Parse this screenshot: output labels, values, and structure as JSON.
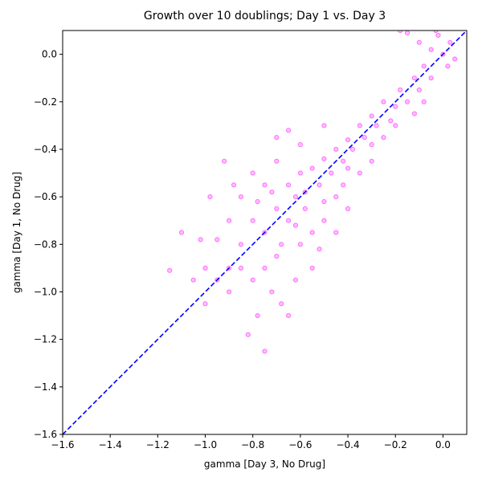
{
  "chart_data": {
    "type": "scatter",
    "title": "Growth over 10 doublings; Day 1 vs. Day 3",
    "x_label": "gamma [Day 3, No Drug]",
    "y_label": "gamma [Day 1, No Drug]",
    "xlim": [
      -1.6,
      0.1
    ],
    "ylim": [
      -1.6,
      0.1
    ],
    "xticks": [
      {
        "value": -1.6,
        "label": "−1.6"
      },
      {
        "value": -1.4,
        "label": "−1.4"
      },
      {
        "value": -1.2,
        "label": "−1.2"
      },
      {
        "value": -1.0,
        "label": "−1.0"
      },
      {
        "value": -0.8,
        "label": "−0.8"
      },
      {
        "value": -0.6,
        "label": "−0.6"
      },
      {
        "value": -0.4,
        "label": "−0.4"
      },
      {
        "value": -0.2,
        "label": "−0.2"
      },
      {
        "value": 0,
        "label": "0.0"
      }
    ],
    "yticks": [
      {
        "value": -1.6,
        "label": "−1.6"
      },
      {
        "value": -1.4,
        "label": "−1.4"
      },
      {
        "value": -1.2,
        "label": "−1.2"
      },
      {
        "value": -1.0,
        "label": "−1.0"
      },
      {
        "value": -0.8,
        "label": "−0.8"
      },
      {
        "value": -0.6,
        "label": "−0.6"
      },
      {
        "value": -0.4,
        "label": "−0.4"
      },
      {
        "value": -0.2,
        "label": "−0.2"
      },
      {
        "value": 0,
        "label": "0.0"
      }
    ],
    "grid": false,
    "diagonal": {
      "color": "#0000ff",
      "dashed": true
    },
    "series": [
      {
        "color": "#ff00ff",
        "opacity": 0.25,
        "x": [
          -0.05,
          0.0,
          0.03,
          -0.02,
          -0.1,
          -0.15,
          0.05,
          -0.08,
          -0.12,
          -0.18,
          -0.2,
          -0.25,
          -0.28,
          -0.3,
          -0.33,
          -0.35,
          -0.38,
          -0.4,
          -0.42,
          -0.45,
          -0.47,
          -0.5,
          -0.52,
          -0.55,
          -0.15,
          -0.22,
          -0.1,
          -0.3,
          -0.4,
          -0.05,
          0.02,
          -0.18,
          -0.03,
          -0.6,
          -0.58,
          -0.62,
          -0.65,
          -0.7,
          -0.75,
          -0.8,
          -0.85,
          -0.9,
          -0.95,
          -0.7,
          -0.75,
          -0.8,
          -0.6,
          -0.55,
          -0.5,
          -0.65,
          -0.75,
          -0.85,
          -0.9,
          -0.95,
          -1.0,
          -0.72,
          -0.68,
          -0.62,
          -0.55,
          -0.45,
          -0.5,
          -0.8,
          -0.88,
          -0.7,
          -0.78,
          -0.82,
          -0.75,
          -0.65,
          -0.9,
          -1.0,
          -0.98,
          -1.02,
          -0.92,
          -0.6,
          -0.65,
          -0.7,
          -0.5,
          -0.45,
          -0.4,
          -0.42,
          -0.35,
          -0.3,
          -0.25,
          -0.2,
          -0.12,
          -0.08,
          -1.1,
          -1.15,
          -1.05,
          -0.58,
          -0.68,
          -0.78,
          -0.62,
          -0.52,
          -0.85,
          -0.72
        ],
        "values": [
          0.02,
          0.0,
          0.05,
          0.08,
          0.05,
          0.09,
          -0.02,
          -0.05,
          -0.1,
          -0.15,
          -0.22,
          -0.2,
          -0.3,
          -0.26,
          -0.35,
          -0.3,
          -0.4,
          -0.36,
          -0.45,
          -0.4,
          -0.5,
          -0.44,
          -0.55,
          -0.48,
          -0.2,
          -0.28,
          -0.15,
          -0.38,
          -0.48,
          -0.1,
          -0.05,
          0.1,
          0.1,
          -0.5,
          -0.58,
          -0.6,
          -0.7,
          -0.65,
          -0.75,
          -0.7,
          -0.8,
          -0.9,
          -0.95,
          -0.85,
          -0.9,
          -0.95,
          -0.8,
          -0.75,
          -0.7,
          -0.55,
          -0.55,
          -0.6,
          -0.7,
          -0.78,
          -0.9,
          -1.0,
          -1.05,
          -0.95,
          -0.9,
          -0.75,
          -0.62,
          -0.5,
          -0.55,
          -0.45,
          -1.1,
          -1.18,
          -1.25,
          -1.1,
          -1.0,
          -1.05,
          -0.6,
          -0.78,
          -0.45,
          -0.38,
          -0.32,
          -0.35,
          -0.3,
          -0.6,
          -0.65,
          -0.55,
          -0.5,
          -0.45,
          -0.35,
          -0.3,
          -0.25,
          -0.2,
          -0.75,
          -0.91,
          -0.95,
          -0.65,
          -0.8,
          -0.62,
          -0.72,
          -0.82,
          -0.9,
          -0.58
        ]
      }
    ]
  }
}
